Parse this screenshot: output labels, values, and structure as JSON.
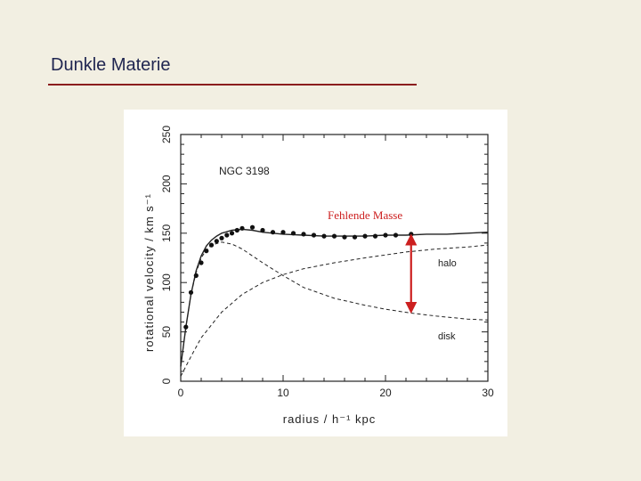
{
  "slide": {
    "title": "Dunkle Materie"
  },
  "chart_data": {
    "type": "line",
    "title": "NGC 3198",
    "xlabel": "radius / h⁻¹ kpc",
    "ylabel": "rotational velocity / km s⁻¹",
    "xlim": [
      0,
      30
    ],
    "ylim": [
      0,
      250
    ],
    "xticks": [
      0,
      10,
      20,
      30
    ],
    "yticks": [
      0,
      50,
      100,
      150,
      200,
      250
    ],
    "grid": false,
    "observed": {
      "x": [
        0.5,
        1.0,
        1.5,
        2.0,
        2.5,
        3.0,
        3.5,
        4.0,
        4.5,
        5.0,
        5.5,
        6.0,
        7.0,
        8.0,
        9.0,
        10.0,
        11.0,
        12.0,
        13.0,
        14.0,
        15.0,
        16.0,
        17.0,
        18.0,
        19.0,
        20.0,
        21.0,
        22.5
      ],
      "y": [
        55,
        90,
        107,
        120,
        132,
        138,
        142,
        145,
        148,
        150,
        153,
        155,
        156,
        153,
        151,
        151,
        150,
        149,
        148,
        147,
        147,
        146,
        146,
        147,
        147,
        148,
        148,
        149
      ]
    },
    "series": [
      {
        "name": "fit",
        "style": "solid",
        "x": [
          0,
          0.5,
          1,
          1.5,
          2,
          2.5,
          3,
          3.5,
          4,
          5,
          6,
          7,
          8,
          10,
          12,
          14,
          16,
          18,
          20,
          22,
          24,
          26,
          28,
          30
        ],
        "y": [
          15,
          55,
          88,
          112,
          127,
          137,
          143,
          147,
          150,
          153,
          154,
          153,
          151,
          149,
          148,
          147,
          147,
          147,
          148,
          148,
          149,
          149,
          150,
          151
        ]
      },
      {
        "name": "halo",
        "style": "dashed",
        "x": [
          0,
          1,
          2,
          4,
          6,
          8,
          10,
          12,
          15,
          18,
          20,
          22,
          25,
          28,
          30
        ],
        "y": [
          5,
          25,
          44,
          70,
          88,
          100,
          108,
          114,
          120,
          125,
          128,
          131,
          134,
          136,
          138
        ]
      },
      {
        "name": "disk",
        "style": "dashed",
        "x": [
          0,
          0.5,
          1,
          1.5,
          2,
          2.5,
          3,
          4,
          5,
          6,
          8,
          10,
          12,
          15,
          18,
          20,
          22.5,
          25,
          28,
          30
        ],
        "y": [
          15,
          55,
          88,
          110,
          125,
          133,
          138,
          141,
          139,
          134,
          120,
          107,
          95,
          84,
          77,
          73,
          69,
          66,
          63,
          62
        ]
      }
    ],
    "annotations": [
      {
        "text": "Fehlende Masse",
        "color": "#cc1f1f"
      },
      {
        "text": "halo"
      },
      {
        "text": "disk"
      }
    ],
    "arrow": {
      "x": 22.5,
      "y_from": 69,
      "y_to": 149,
      "color": "#cc1f1f"
    },
    "colors": {
      "curves": "#222222",
      "highlight": "#cc1f1f"
    }
  }
}
